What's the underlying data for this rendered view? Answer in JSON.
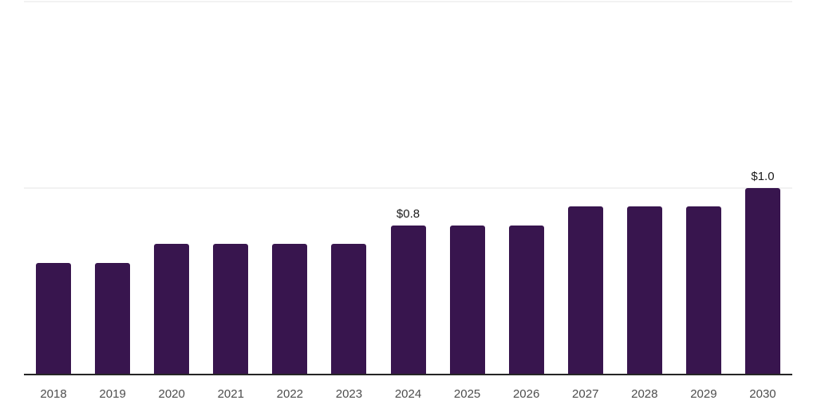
{
  "chart_data": {
    "type": "bar",
    "title": "",
    "xlabel": "",
    "ylabel": "",
    "categories": [
      "2018",
      "2019",
      "2020",
      "2021",
      "2022",
      "2023",
      "2024",
      "2025",
      "2026",
      "2027",
      "2028",
      "2029",
      "2030"
    ],
    "values": [
      0.6,
      0.6,
      0.7,
      0.7,
      0.7,
      0.7,
      0.8,
      0.8,
      0.8,
      0.9,
      0.9,
      0.9,
      1.0
    ],
    "bar_labels": [
      "",
      "",
      "",
      "",
      "",
      "",
      "$0.8",
      "",
      "",
      "",
      "",
      "",
      "$1.0"
    ],
    "ylim": [
      0,
      1.0
    ],
    "y_gridlines": [
      1.0
    ],
    "grid": "single horizontal gridline at y=1.0 plus top border line",
    "legend_position": "none"
  },
  "style": {
    "bar_color": "#38154e",
    "grid_color": "#f2f2f2",
    "axis_color": "#262626",
    "tick_label_color": "#4d4d4d",
    "value_label_color": "#1a1a1a",
    "background": "#ffffff"
  }
}
